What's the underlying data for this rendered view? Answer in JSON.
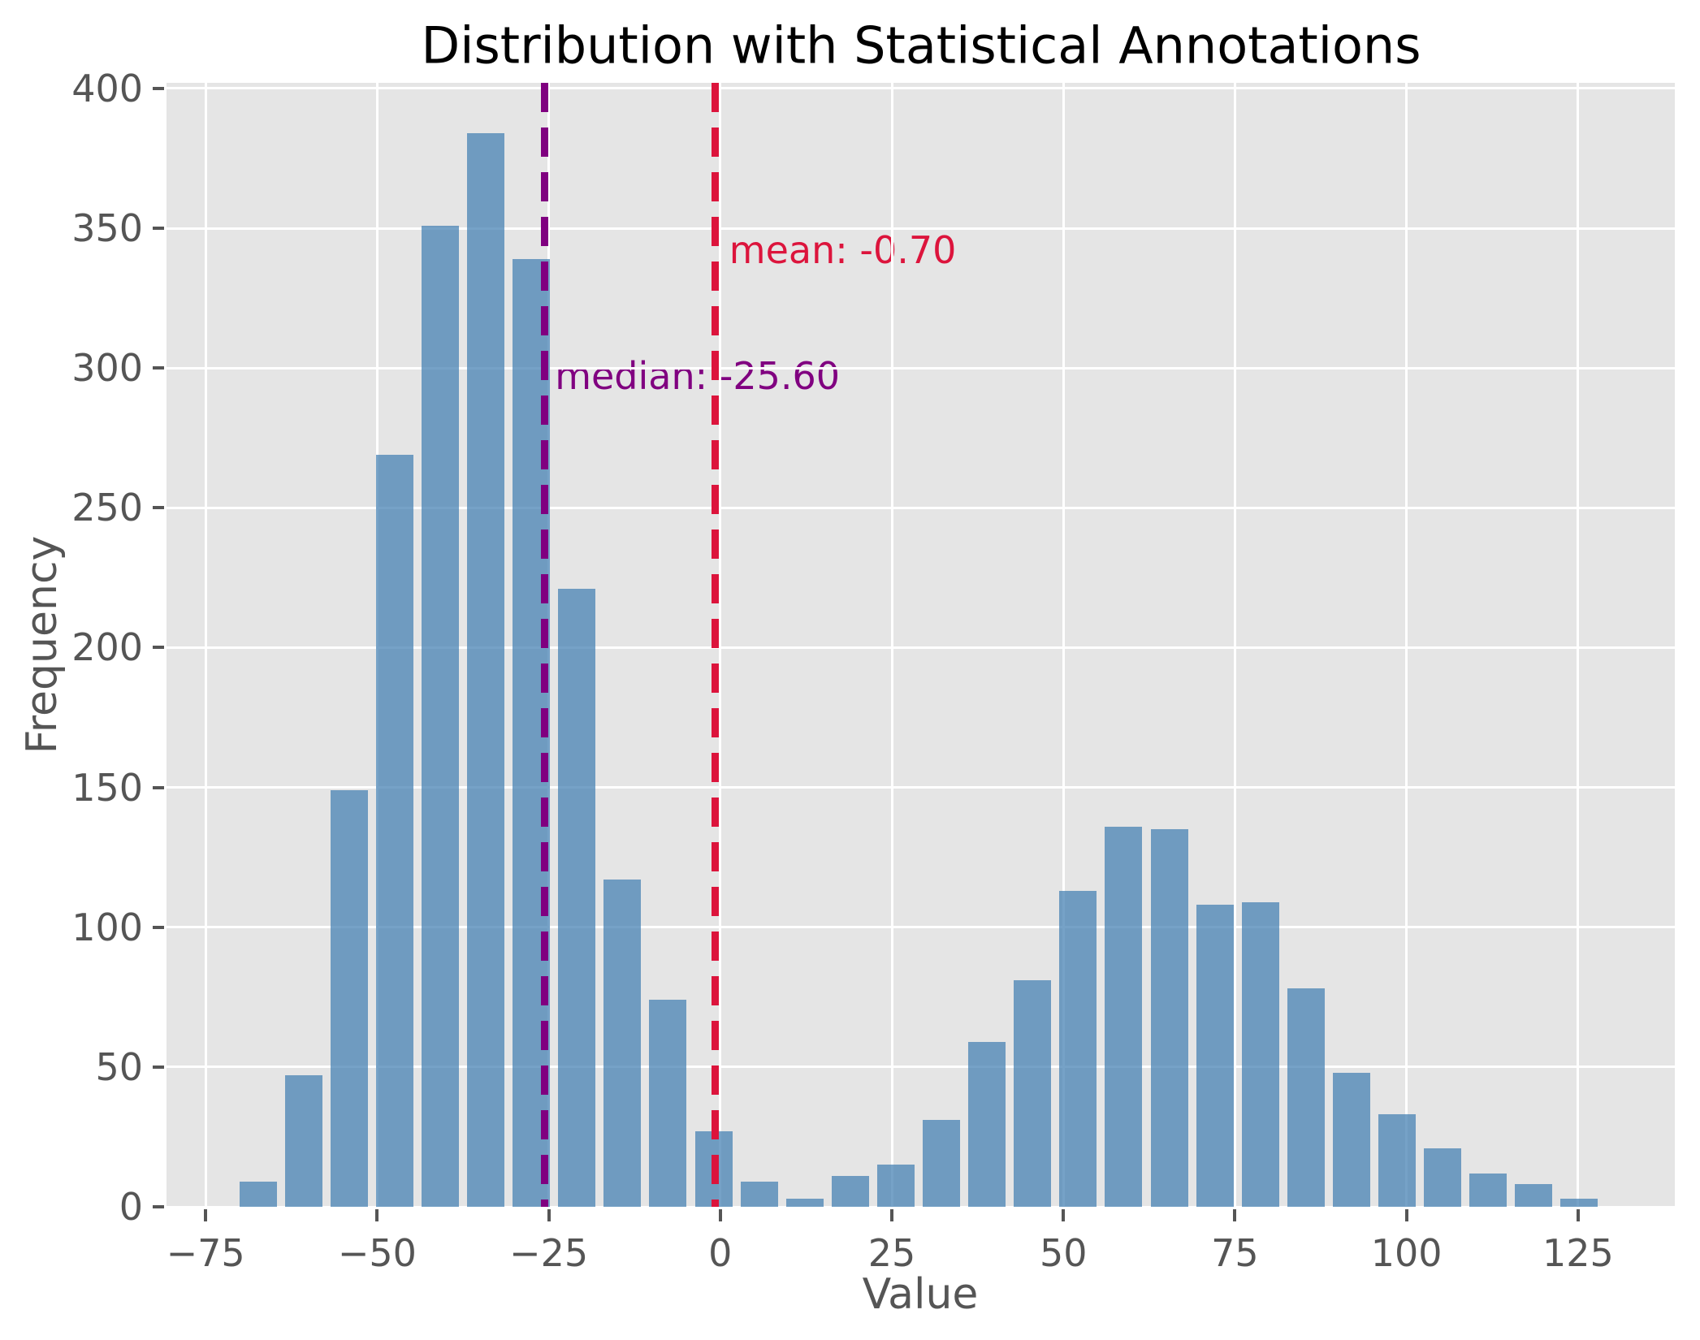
{
  "chart_data": {
    "type": "bar",
    "subtype": "histogram",
    "title": "Distribution with Statistical Annotations",
    "xlabel": "Value",
    "ylabel": "Frequency",
    "bin_start": -70.7,
    "bin_width": 6.64,
    "counts": [
      9,
      47,
      149,
      269,
      351,
      384,
      339,
      221,
      117,
      74,
      27,
      9,
      3,
      11,
      15,
      31,
      59,
      81,
      113,
      136,
      135,
      108,
      109,
      78,
      48,
      33,
      21,
      12,
      8,
      3
    ],
    "xlim": [
      -80.7,
      139.1
    ],
    "ylim": [
      0,
      402
    ],
    "xticks": [
      -75,
      -50,
      -25,
      0,
      25,
      50,
      75,
      100,
      125
    ],
    "xtick_labels": [
      "−75",
      "−50",
      "−25",
      "0",
      "25",
      "50",
      "75",
      "100",
      "125"
    ],
    "yticks": [
      0,
      50,
      100,
      150,
      200,
      250,
      300,
      350,
      400
    ],
    "ytick_labels": [
      "0",
      "50",
      "100",
      "150",
      "200",
      "250",
      "300",
      "350",
      "400"
    ],
    "grid": true,
    "legend_position": "none",
    "bar_color": "rgba(70,130,180,0.74)",
    "axes_background": "#e5e5e5",
    "tick_color": "#555555",
    "mean_line": {
      "value": -0.7,
      "label": "mean: -0.70",
      "color": "#DC143C",
      "style": "dashed",
      "label_x": 1.3,
      "label_y": 350
    },
    "median_line": {
      "value": -25.6,
      "label": "median: -25.60",
      "color": "#800080",
      "style": "dashed",
      "label_x": -24.1,
      "label_y": 305
    }
  }
}
